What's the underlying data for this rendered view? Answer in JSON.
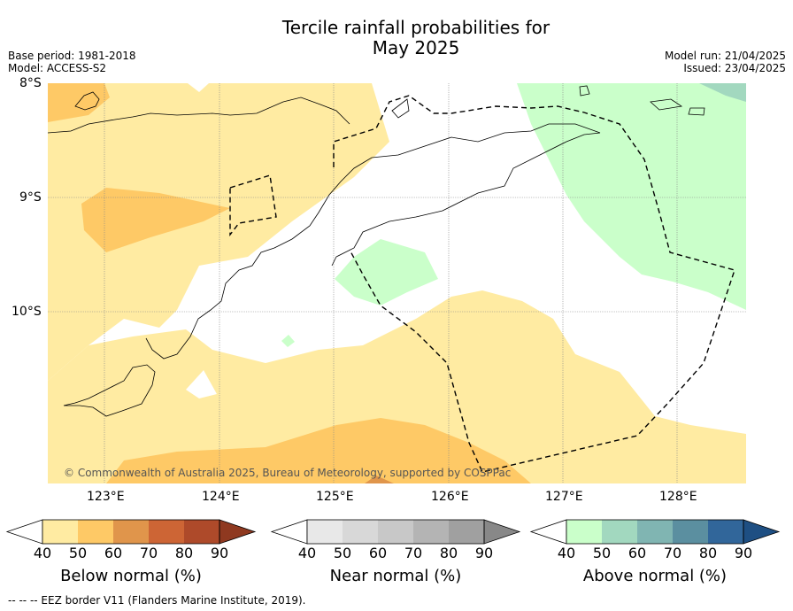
{
  "title_line1": "Tercile rainfall probabilities for",
  "title_line2": "May 2025",
  "base_period": "Base period: 1981-2018",
  "model": "Model: ACCESS-S2",
  "model_run": "Model run: 21/04/2025",
  "issued": "Issued: 23/04/2025",
  "lat_labels": [
    "8°S",
    "9°S",
    "10°S"
  ],
  "lon_labels": [
    "123°E",
    "124°E",
    "125°E",
    "126°E",
    "127°E",
    "128°E"
  ],
  "copyright": "© Commonwealth of Australia 2025, Bureau of Meteorology, supported by COSPPac",
  "colorbars": [
    {
      "label": "Below normal (%)",
      "ticks": [
        "40",
        "50",
        "60",
        "70",
        "80",
        "90"
      ],
      "colors": [
        "#ffeba2",
        "#fec966",
        "#e0954b",
        "#cd6535",
        "#ae4a2a",
        "#8f3920"
      ]
    },
    {
      "label": "Near normal (%)",
      "ticks": [
        "40",
        "50",
        "60",
        "70",
        "80",
        "90"
      ],
      "colors": [
        "#e8e8e8",
        "#d8d8d8",
        "#c8c8c8",
        "#b4b4b4",
        "#a0a0a0",
        "#888888"
      ]
    },
    {
      "label": "Above normal (%)",
      "ticks": [
        "40",
        "50",
        "60",
        "70",
        "80",
        "90"
      ],
      "colors": [
        "#caffca",
        "#a2d8bf",
        "#80b5b2",
        "#5b8fa0",
        "#31669a",
        "#1e4f83"
      ]
    }
  ],
  "footer": "--  --  -- EEZ border V11 (Flanders Marine Institute, 2019)."
}
